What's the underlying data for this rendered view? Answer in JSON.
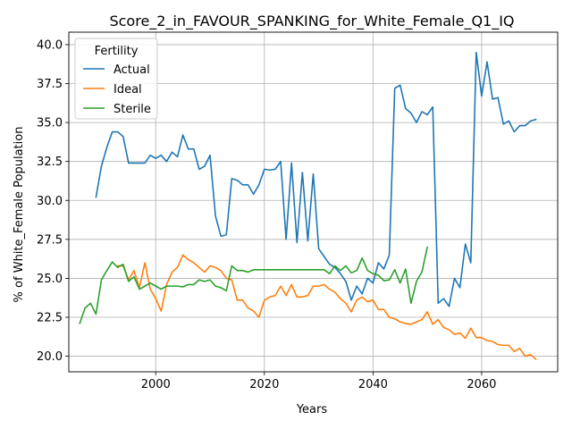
{
  "chart_data": {
    "type": "line",
    "title": "Score_2_in_FAVOUR_SPANKING_for_White_Female_Q1_IQ",
    "xlabel": "Years",
    "ylabel": "% of White_Female Population",
    "xlim": [
      1984,
      2074
    ],
    "ylim": [
      19.0,
      40.8
    ],
    "xticks": [
      2000,
      2020,
      2040,
      2060
    ],
    "yticks": [
      20.0,
      22.5,
      25.0,
      27.5,
      30.0,
      32.5,
      35.0,
      37.5,
      40.0
    ],
    "ytick_labels": [
      "20.0",
      "22.5",
      "25.0",
      "27.5",
      "30.0",
      "32.5",
      "35.0",
      "37.5",
      "40.0"
    ],
    "grid": true,
    "legend": {
      "title": "Fertility",
      "position": "top-left"
    },
    "series": [
      {
        "name": "Actual",
        "color": "#1f77b4",
        "x": [
          1989,
          1990,
          1991,
          1992,
          1993,
          1994,
          1995,
          1996,
          1997,
          1998,
          1999,
          2000,
          2001,
          2002,
          2003,
          2004,
          2005,
          2006,
          2007,
          2008,
          2009,
          2010,
          2011,
          2012,
          2013,
          2014,
          2015,
          2016,
          2017,
          2018,
          2019,
          2020,
          2021,
          2022,
          2023,
          2024,
          2025,
          2026,
          2027,
          2028,
          2029,
          2030,
          2031,
          2032,
          2033,
          2034,
          2035,
          2036,
          2037,
          2038,
          2039,
          2040,
          2041,
          2042,
          2043,
          2044,
          2045,
          2046,
          2047,
          2048,
          2049,
          2050,
          2051,
          2052,
          2053,
          2054,
          2055,
          2056,
          2057,
          2058,
          2059,
          2060,
          2061,
          2062,
          2063,
          2064,
          2065,
          2066,
          2067,
          2068,
          2069,
          2070
        ],
        "y": [
          30.2,
          32.2,
          33.4,
          34.4,
          34.4,
          34.1,
          32.4,
          32.4,
          32.4,
          32.4,
          32.9,
          32.7,
          32.9,
          32.5,
          33.1,
          32.8,
          34.2,
          33.3,
          33.3,
          32.0,
          32.2,
          32.9,
          29.0,
          27.7,
          27.8,
          31.4,
          31.3,
          31.0,
          31.0,
          30.4,
          31.0,
          32.0,
          31.95,
          32.0,
          32.5,
          27.5,
          32.4,
          27.3,
          31.8,
          27.4,
          31.7,
          26.9,
          26.4,
          25.9,
          25.7,
          25.3,
          24.8,
          23.6,
          24.5,
          24.0,
          25.0,
          24.7,
          26.0,
          25.6,
          26.5,
          37.2,
          37.4,
          35.9,
          35.6,
          35.0,
          35.7,
          35.5,
          36.0,
          23.4,
          23.7,
          23.2,
          25.0,
          24.4,
          27.2,
          26.0,
          39.5,
          36.7,
          38.9,
          36.5,
          36.6,
          34.9,
          35.1,
          34.4,
          34.8,
          34.8,
          35.1,
          35.2
        ]
      },
      {
        "name": "Ideal",
        "color": "#ff7f0e",
        "x": [
          1993,
          1994,
          1995,
          1996,
          1997,
          1998,
          1999,
          2000,
          2001,
          2002,
          2003,
          2004,
          2005,
          2006,
          2007,
          2008,
          2009,
          2010,
          2011,
          2012,
          2013,
          2014,
          2015,
          2016,
          2017,
          2018,
          2019,
          2020,
          2021,
          2022,
          2023,
          2024,
          2025,
          2026,
          2027,
          2028,
          2029,
          2030,
          2031,
          2032,
          2033,
          2034,
          2035,
          2036,
          2037,
          2038,
          2039,
          2040,
          2041,
          2042,
          2043,
          2044,
          2045,
          2046,
          2047,
          2048,
          2049,
          2050,
          2051,
          2052,
          2053,
          2054,
          2055,
          2056,
          2057,
          2058,
          2059,
          2060,
          2061,
          2062,
          2063,
          2064,
          2065,
          2066,
          2067,
          2068,
          2069,
          2070
        ],
        "y": [
          25.8,
          25.8,
          24.9,
          25.5,
          24.4,
          26.0,
          24.3,
          23.7,
          22.9,
          24.6,
          25.4,
          25.7,
          26.5,
          26.2,
          26.0,
          25.7,
          25.4,
          25.8,
          25.7,
          25.5,
          25.0,
          24.9,
          23.6,
          23.6,
          23.1,
          22.9,
          22.5,
          23.6,
          23.8,
          23.9,
          24.5,
          23.9,
          24.6,
          23.8,
          23.8,
          23.9,
          24.5,
          24.5,
          24.6,
          24.3,
          24.1,
          23.7,
          23.4,
          22.85,
          23.6,
          23.8,
          23.5,
          23.6,
          23.0,
          23.0,
          22.5,
          22.4,
          22.2,
          22.1,
          22.05,
          22.2,
          22.35,
          22.85,
          22.05,
          22.35,
          21.85,
          21.7,
          21.4,
          21.5,
          21.15,
          21.8,
          21.2,
          21.2,
          21.0,
          20.95,
          20.75,
          20.7,
          20.7,
          20.3,
          20.5,
          20.0,
          20.1,
          19.8
        ]
      },
      {
        "name": "Sterile",
        "color": "#2ca02c",
        "x": [
          1986,
          1987,
          1988,
          1989,
          1990,
          1991,
          1992,
          1993,
          1994,
          1995,
          1996,
          1997,
          1998,
          1999,
          2000,
          2001,
          2002,
          2003,
          2004,
          2005,
          2006,
          2007,
          2008,
          2009,
          2010,
          2011,
          2012,
          2013,
          2014,
          2015,
          2016,
          2017,
          2018,
          2019,
          2020,
          2021,
          2022,
          2023,
          2024,
          2025,
          2026,
          2027,
          2028,
          2029,
          2030,
          2031,
          2032,
          2033,
          2034,
          2035,
          2036,
          2037,
          2038,
          2039,
          2040,
          2041,
          2042,
          2043,
          2044,
          2045,
          2046,
          2047,
          2048,
          2049,
          2050
        ],
        "y": [
          22.1,
          23.1,
          23.4,
          22.7,
          24.9,
          25.5,
          26.05,
          25.7,
          25.9,
          24.8,
          25.1,
          24.3,
          24.5,
          24.7,
          24.5,
          24.3,
          24.5,
          24.5,
          24.5,
          24.45,
          24.6,
          24.6,
          24.9,
          24.8,
          24.9,
          24.5,
          24.4,
          24.2,
          25.8,
          25.5,
          25.5,
          25.4,
          25.55,
          25.55,
          25.55,
          25.55,
          25.55,
          25.55,
          25.55,
          25.55,
          25.55,
          25.55,
          25.55,
          25.55,
          25.55,
          25.55,
          25.3,
          25.8,
          25.5,
          25.8,
          25.35,
          25.5,
          26.3,
          25.5,
          25.3,
          25.2,
          24.85,
          24.9,
          25.55,
          24.7,
          25.6,
          23.4,
          24.8,
          25.4,
          27.0
        ]
      }
    ]
  }
}
